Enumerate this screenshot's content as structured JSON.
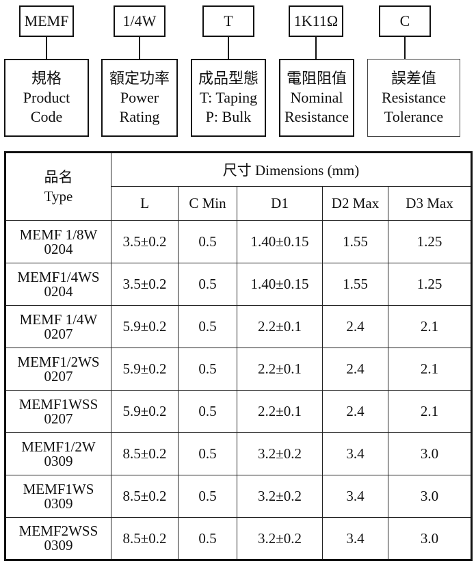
{
  "part_code": {
    "segments": [
      {
        "code": "MEMF",
        "label_zh": "規格",
        "label_en_1": "Product",
        "label_en_2": "Code"
      },
      {
        "code": "1/4W",
        "label_zh": "額定功率",
        "label_en_1": "Power",
        "label_en_2": "Rating"
      },
      {
        "code": "T",
        "label_zh": "成品型態",
        "label_en_1": "T: Taping",
        "label_en_2": "P: Bulk"
      },
      {
        "code": "1K11Ω",
        "label_zh": "電阻阻值",
        "label_en_1": "Nominal",
        "label_en_2": "Resistance"
      },
      {
        "code": "C",
        "label_zh": "誤差值",
        "label_en_1": "Resistance",
        "label_en_2": "Tolerance"
      }
    ]
  },
  "table": {
    "type_header_zh": "品名",
    "type_header_en": "Type",
    "dimensions_header": "尺寸 Dimensions (mm)",
    "columns": [
      "L",
      "C Min",
      "D1",
      "D2 Max",
      "D3 Max"
    ],
    "rows": [
      {
        "type_1": "MEMF 1/8W",
        "type_2": "0204",
        "cells": [
          "3.5±0.2",
          "0.5",
          "1.40±0.15",
          "1.55",
          "1.25"
        ]
      },
      {
        "type_1": "MEMF1/4WS",
        "type_2": "0204",
        "cells": [
          "3.5±0.2",
          "0.5",
          "1.40±0.15",
          "1.55",
          "1.25"
        ]
      },
      {
        "type_1": "MEMF 1/4W",
        "type_2": "0207",
        "cells": [
          "5.9±0.2",
          "0.5",
          "2.2±0.1",
          "2.4",
          "2.1"
        ]
      },
      {
        "type_1": "MEMF1/2WS",
        "type_2": "0207",
        "cells": [
          "5.9±0.2",
          "0.5",
          "2.2±0.1",
          "2.4",
          "2.1"
        ]
      },
      {
        "type_1": "MEMF1WSS",
        "type_2": "0207",
        "cells": [
          "5.9±0.2",
          "0.5",
          "2.2±0.1",
          "2.4",
          "2.1"
        ]
      },
      {
        "type_1": "MEMF1/2W",
        "type_2": "0309",
        "cells": [
          "8.5±0.2",
          "0.5",
          "3.2±0.2",
          "3.4",
          "3.0"
        ]
      },
      {
        "type_1": "MEMF1WS",
        "type_2": "0309",
        "cells": [
          "8.5±0.2",
          "0.5",
          "3.2±0.2",
          "3.4",
          "3.0"
        ]
      },
      {
        "type_1": "MEMF2WSS",
        "type_2": "0309",
        "cells": [
          "8.5±0.2",
          "0.5",
          "3.2±0.2",
          "3.4",
          "3.0"
        ]
      }
    ]
  }
}
